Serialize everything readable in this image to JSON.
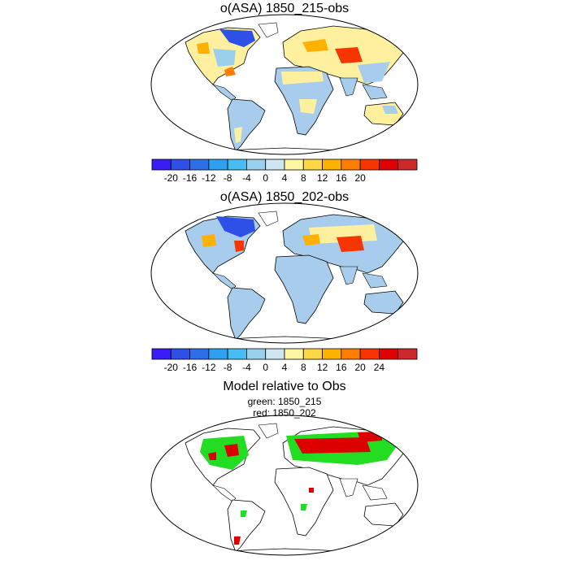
{
  "panels": [
    {
      "title": "o(ASA) 1850_215-obs",
      "colorbar": {
        "colors": [
          "#3a1cf5",
          "#2e50e6",
          "#2e6fe8",
          "#2f9ff0",
          "#48bdf2",
          "#9ad0ec",
          "#cfe6f2",
          "#fff5a3",
          "#ffd54a",
          "#ffb100",
          "#ff7d00",
          "#f73500",
          "#e00000",
          "#cc2a2a"
        ],
        "labels": [
          "-20",
          "-16",
          "-12",
          "-8",
          "-4",
          "0",
          "4",
          "8",
          "12",
          "16",
          "20"
        ]
      }
    },
    {
      "title": "o(ASA) 1850_202-obs",
      "colorbar": {
        "colors": [
          "#3a1cf5",
          "#2e50e6",
          "#2e6fe8",
          "#2f9ff0",
          "#48bdf2",
          "#9ad0ec",
          "#cfe6f2",
          "#fff5a3",
          "#ffd54a",
          "#ffb100",
          "#ff7d00",
          "#f73500",
          "#e00000",
          "#cc2a2a"
        ],
        "labels": [
          "-20",
          "-16",
          "-12",
          "-8",
          "-4",
          "0",
          "4",
          "8",
          "12",
          "16",
          "20",
          "24"
        ]
      }
    },
    {
      "title": "Model relative to Obs",
      "legend_green": "green: 1850_215",
      "legend_red": "red: 1850_202"
    }
  ],
  "colors": {
    "ocean_outline": "#000000",
    "land_light_blue": "#a8cdec",
    "land_yellow": "#fff0a0",
    "green": "#22dd22",
    "red": "#dd0000"
  }
}
